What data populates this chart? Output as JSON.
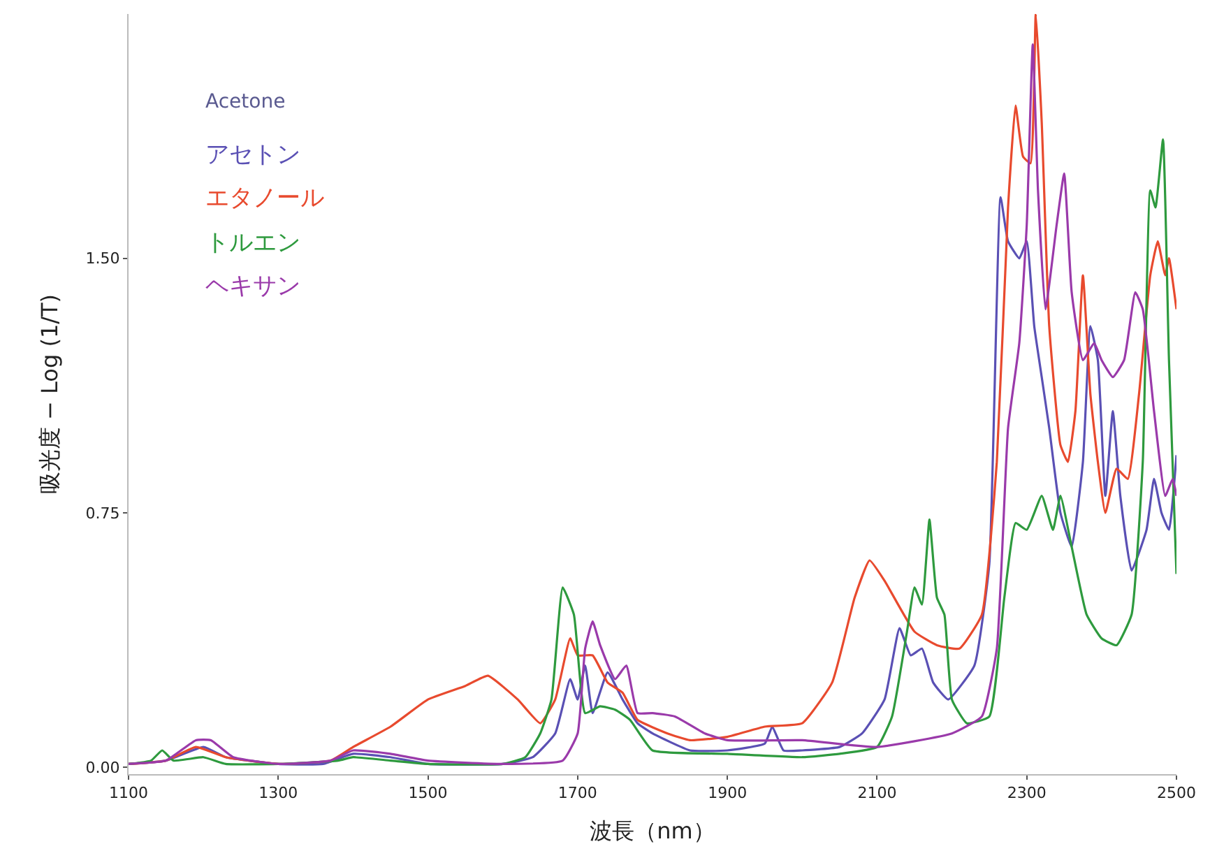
{
  "chart_data": {
    "type": "line",
    "xlabel": "波長（nm）",
    "ylabel": "吸光度 − Log (1/T)",
    "annotations": [
      "Acetone"
    ],
    "xlim": [
      1100,
      2500
    ],
    "xticks": [
      1100,
      1300,
      1500,
      1700,
      1900,
      2100,
      2300,
      2500
    ],
    "ylim": [
      -0.02,
      2.22
    ],
    "yticks": [
      {
        "value": 0,
        "label": "0.00"
      },
      {
        "value": 0.75,
        "label": "0.75"
      },
      {
        "value": 1.5,
        "label": "1.50"
      }
    ],
    "legend": "top left",
    "marker": "none",
    "line_style": "solid",
    "series": [
      {
        "name": "アセトン",
        "color": "#5a50b4",
        "x": [
          1100,
          1150,
          1200,
          1230,
          1300,
          1360,
          1400,
          1450,
          1500,
          1600,
          1640,
          1670,
          1690,
          1700,
          1710,
          1720,
          1740,
          1760,
          1780,
          1800,
          1850,
          1900,
          1950,
          1960,
          1975,
          2000,
          2050,
          2080,
          2110,
          2130,
          2145,
          2160,
          2175,
          2195,
          2230,
          2250,
          2265,
          2275,
          2290,
          2300,
          2310,
          2320,
          2330,
          2345,
          2360,
          2375,
          2385,
          2395,
          2405,
          2415,
          2425,
          2440,
          2460,
          2470,
          2480,
          2490,
          2500
        ],
        "values": [
          0.01,
          0.02,
          0.06,
          0.03,
          0.01,
          0.01,
          0.04,
          0.03,
          0.01,
          0.01,
          0.03,
          0.1,
          0.26,
          0.2,
          0.3,
          0.16,
          0.28,
          0.2,
          0.13,
          0.1,
          0.05,
          0.05,
          0.07,
          0.12,
          0.05,
          0.05,
          0.06,
          0.1,
          0.2,
          0.41,
          0.33,
          0.35,
          0.25,
          0.2,
          0.3,
          0.6,
          1.68,
          1.55,
          1.5,
          1.55,
          1.3,
          1.15,
          1.0,
          0.75,
          0.65,
          0.9,
          1.3,
          1.2,
          0.8,
          1.05,
          0.8,
          0.58,
          0.7,
          0.85,
          0.75,
          0.7,
          0.92
        ]
      },
      {
        "name": "エタノール",
        "color": "#e84a2e",
        "x": [
          1100,
          1150,
          1190,
          1230,
          1300,
          1370,
          1400,
          1450,
          1500,
          1550,
          1580,
          1620,
          1650,
          1670,
          1690,
          1700,
          1720,
          1740,
          1760,
          1780,
          1820,
          1850,
          1900,
          1950,
          2000,
          2040,
          2070,
          2090,
          2110,
          2150,
          2180,
          2210,
          2240,
          2260,
          2275,
          2285,
          2295,
          2305,
          2312,
          2320,
          2330,
          2345,
          2355,
          2365,
          2375,
          2385,
          2395,
          2405,
          2420,
          2435,
          2450,
          2465,
          2475,
          2485,
          2490,
          2500
        ],
        "values": [
          0.01,
          0.02,
          0.06,
          0.03,
          0.01,
          0.02,
          0.06,
          0.12,
          0.2,
          0.24,
          0.27,
          0.2,
          0.13,
          0.2,
          0.38,
          0.33,
          0.33,
          0.25,
          0.22,
          0.14,
          0.1,
          0.08,
          0.09,
          0.12,
          0.13,
          0.25,
          0.5,
          0.61,
          0.55,
          0.4,
          0.36,
          0.35,
          0.45,
          0.9,
          1.65,
          1.95,
          1.8,
          1.78,
          2.22,
          1.9,
          1.3,
          0.95,
          0.9,
          1.05,
          1.45,
          1.1,
          0.9,
          0.75,
          0.88,
          0.85,
          1.1,
          1.45,
          1.55,
          1.45,
          1.5,
          1.35
        ]
      },
      {
        "name": "トルエン",
        "color": "#2e9a3e",
        "x": [
          1100,
          1130,
          1145,
          1160,
          1200,
          1230,
          1300,
          1380,
          1400,
          1450,
          1500,
          1600,
          1630,
          1650,
          1665,
          1680,
          1695,
          1710,
          1730,
          1750,
          1770,
          1800,
          1900,
          2000,
          2050,
          2100,
          2120,
          2140,
          2150,
          2160,
          2170,
          2180,
          2190,
          2200,
          2220,
          2250,
          2270,
          2285,
          2300,
          2320,
          2335,
          2345,
          2360,
          2380,
          2400,
          2420,
          2440,
          2455,
          2465,
          2472,
          2482,
          2490,
          2500
        ],
        "values": [
          0.01,
          0.02,
          0.05,
          0.02,
          0.03,
          0.01,
          0.01,
          0.02,
          0.03,
          0.02,
          0.01,
          0.01,
          0.03,
          0.1,
          0.2,
          0.53,
          0.45,
          0.16,
          0.18,
          0.17,
          0.14,
          0.05,
          0.04,
          0.03,
          0.04,
          0.06,
          0.15,
          0.4,
          0.53,
          0.48,
          0.73,
          0.5,
          0.45,
          0.2,
          0.13,
          0.15,
          0.5,
          0.72,
          0.7,
          0.8,
          0.7,
          0.8,
          0.65,
          0.45,
          0.38,
          0.36,
          0.45,
          0.9,
          1.7,
          1.65,
          1.85,
          1.2,
          0.57
        ]
      },
      {
        "name": "ヘキサン",
        "color": "#9a3aaa",
        "x": [
          1100,
          1150,
          1190,
          1210,
          1240,
          1300,
          1370,
          1400,
          1450,
          1500,
          1600,
          1680,
          1700,
          1710,
          1720,
          1730,
          1750,
          1765,
          1780,
          1800,
          1830,
          1870,
          1900,
          2000,
          2100,
          2200,
          2240,
          2260,
          2275,
          2290,
          2300,
          2308,
          2315,
          2325,
          2340,
          2350,
          2360,
          2375,
          2390,
          2400,
          2415,
          2430,
          2445,
          2455,
          2470,
          2485,
          2495,
          2500
        ],
        "values": [
          0.01,
          0.02,
          0.08,
          0.08,
          0.03,
          0.01,
          0.02,
          0.05,
          0.04,
          0.02,
          0.01,
          0.02,
          0.1,
          0.35,
          0.43,
          0.36,
          0.26,
          0.3,
          0.16,
          0.16,
          0.15,
          0.1,
          0.08,
          0.08,
          0.06,
          0.1,
          0.15,
          0.35,
          1.0,
          1.25,
          1.6,
          2.13,
          1.7,
          1.35,
          1.6,
          1.75,
          1.4,
          1.2,
          1.25,
          1.2,
          1.15,
          1.2,
          1.4,
          1.35,
          1.05,
          0.8,
          0.85,
          0.8
        ]
      }
    ]
  }
}
